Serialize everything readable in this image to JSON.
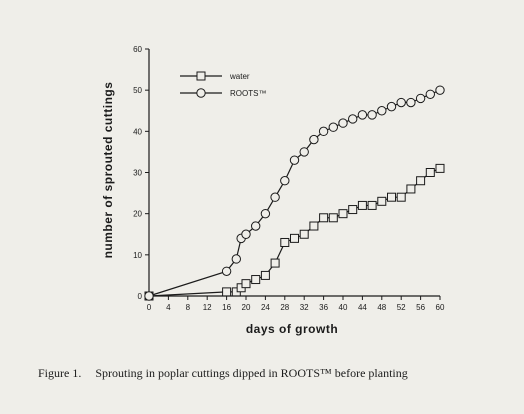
{
  "chart_data": {
    "type": "line",
    "xlabel": "days of growth",
    "ylabel": "number of sprouted cuttings",
    "xlim": [
      0,
      60
    ],
    "ylim": [
      0,
      60
    ],
    "xticks": [
      0,
      4,
      8,
      12,
      16,
      20,
      24,
      28,
      32,
      36,
      40,
      44,
      48,
      52,
      56,
      60
    ],
    "yticks": [
      0,
      10,
      20,
      30,
      40,
      50,
      60
    ],
    "legend_position": "top-left",
    "grid": false,
    "series": [
      {
        "name": "water",
        "marker": "square",
        "x": [
          0,
          16,
          18,
          19,
          20,
          22,
          24,
          26,
          28,
          30,
          32,
          34,
          36,
          38,
          40,
          42,
          44,
          46,
          48,
          50,
          52,
          54,
          56,
          58,
          60
        ],
        "y": [
          0,
          1,
          1,
          2,
          3,
          4,
          5,
          8,
          13,
          14,
          15,
          17,
          19,
          19,
          20,
          21,
          22,
          22,
          23,
          24,
          24,
          26,
          28,
          30,
          31
        ]
      },
      {
        "name": "ROOTS™",
        "marker": "circle",
        "x": [
          0,
          16,
          18,
          19,
          20,
          22,
          24,
          26,
          28,
          30,
          32,
          34,
          36,
          38,
          40,
          42,
          44,
          46,
          48,
          50,
          52,
          54,
          56,
          58,
          60
        ],
        "y": [
          0,
          6,
          9,
          14,
          15,
          17,
          20,
          24,
          28,
          33,
          35,
          38,
          40,
          41,
          42,
          43,
          44,
          44,
          45,
          46,
          47,
          47,
          48,
          49,
          50
        ]
      }
    ]
  },
  "caption": {
    "figure_number": "Figure 1.",
    "text": "Sprouting in poplar cuttings dipped in ROOTS™ before planting"
  }
}
